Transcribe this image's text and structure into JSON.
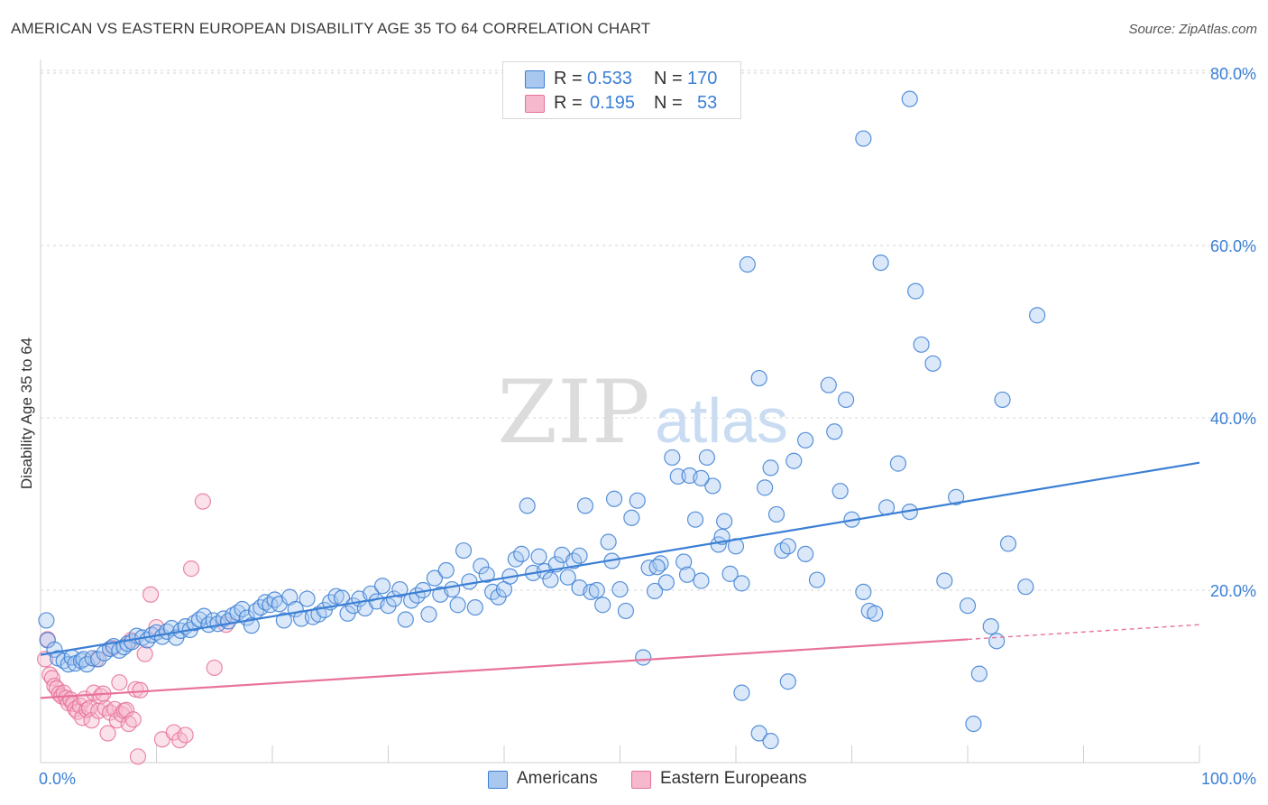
{
  "title": "AMERICAN VS EASTERN EUROPEAN DISABILITY AGE 35 TO 64 CORRELATION CHART",
  "source": "Source: ZipAtlas.com",
  "watermark": {
    "zip": "ZIP",
    "atlas": "atlas"
  },
  "colors": {
    "blue": "#3b7fd4",
    "blue_fill": "#a9c8f0",
    "pink": "#e8729a",
    "pink_fill": "#f6b8cc",
    "grid": "#d6d6d6",
    "axis_text": "#3b7fd4"
  },
  "legend": {
    "rows": [
      {
        "r_label": "R = ",
        "r_value": "0.533",
        "n_label": "N = ",
        "n_value": "170"
      },
      {
        "r_label": "R = ",
        "r_value": "0.195",
        "n_label": "N = ",
        "n_value": "53"
      }
    ]
  },
  "bottom_legend": {
    "americans": "Americans",
    "eastern_europeans": "Eastern Europeans"
  },
  "chart_data": {
    "type": "scatter",
    "title": "AMERICAN VS EASTERN EUROPEAN DISABILITY AGE 35 TO 64 CORRELATION CHART",
    "xlabel": "",
    "ylabel": "Disability Age 35 to 64",
    "xlim": [
      0,
      100
    ],
    "ylim": [
      0,
      80
    ],
    "x_tick_labels": [
      "0.0%",
      "100.0%"
    ],
    "y_ticks": [
      20,
      40,
      60,
      80
    ],
    "y_tick_labels": [
      "20.0%",
      "40.0%",
      "60.0%",
      "80.0%"
    ],
    "grid": true,
    "legend_placement": "top-center",
    "series": [
      {
        "name": "Americans",
        "color": "#3b7fd4",
        "trend": {
          "x": [
            0,
            100
          ],
          "y": [
            12.5,
            34.8
          ],
          "dashed_from": null
        },
        "points": [
          [
            0.5,
            16.5
          ],
          [
            0.6,
            14.2
          ],
          [
            1.2,
            13.1
          ],
          [
            1.5,
            12.1
          ],
          [
            2.0,
            11.8
          ],
          [
            2.4,
            11.4
          ],
          [
            2.7,
            12.2
          ],
          [
            3.0,
            11.5
          ],
          [
            3.5,
            11.8
          ],
          [
            3.7,
            12.0
          ],
          [
            4.0,
            11.4
          ],
          [
            4.5,
            12.1
          ],
          [
            5.0,
            12.0
          ],
          [
            5.5,
            12.7
          ],
          [
            6.0,
            13.2
          ],
          [
            6.3,
            13.5
          ],
          [
            6.8,
            13.0
          ],
          [
            7.2,
            13.4
          ],
          [
            7.5,
            13.8
          ],
          [
            7.9,
            14.0
          ],
          [
            8.3,
            14.7
          ],
          [
            8.8,
            14.5
          ],
          [
            9.2,
            14.2
          ],
          [
            9.6,
            14.8
          ],
          [
            10.0,
            15.1
          ],
          [
            10.5,
            14.6
          ],
          [
            10.9,
            15.2
          ],
          [
            11.3,
            15.6
          ],
          [
            11.7,
            14.5
          ],
          [
            12.1,
            15.3
          ],
          [
            12.5,
            15.8
          ],
          [
            12.9,
            15.4
          ],
          [
            13.3,
            16.2
          ],
          [
            13.7,
            16.6
          ],
          [
            14.1,
            17.0
          ],
          [
            14.5,
            16.0
          ],
          [
            14.9,
            16.5
          ],
          [
            15.3,
            16.1
          ],
          [
            15.8,
            16.7
          ],
          [
            16.2,
            16.4
          ],
          [
            16.6,
            17.1
          ],
          [
            17.0,
            17.4
          ],
          [
            17.4,
            17.8
          ],
          [
            17.8,
            16.8
          ],
          [
            18.2,
            15.9
          ],
          [
            18.6,
            17.6
          ],
          [
            19.0,
            18.0
          ],
          [
            19.4,
            18.6
          ],
          [
            19.8,
            18.3
          ],
          [
            20.2,
            18.9
          ],
          [
            20.6,
            18.4
          ],
          [
            21.0,
            16.5
          ],
          [
            21.5,
            19.2
          ],
          [
            22.0,
            17.8
          ],
          [
            22.5,
            16.7
          ],
          [
            23.0,
            19.0
          ],
          [
            23.5,
            16.9
          ],
          [
            24.0,
            17.2
          ],
          [
            24.5,
            17.7
          ],
          [
            25.0,
            18.6
          ],
          [
            25.5,
            19.3
          ],
          [
            26.0,
            19.1
          ],
          [
            26.5,
            17.3
          ],
          [
            27.0,
            18.2
          ],
          [
            27.5,
            19.0
          ],
          [
            28.0,
            17.9
          ],
          [
            28.5,
            19.6
          ],
          [
            29.0,
            18.7
          ],
          [
            29.5,
            20.5
          ],
          [
            30.0,
            18.2
          ],
          [
            30.5,
            19.0
          ],
          [
            31.0,
            20.1
          ],
          [
            31.5,
            16.6
          ],
          [
            32.0,
            18.8
          ],
          [
            32.5,
            19.4
          ],
          [
            33.0,
            20.0
          ],
          [
            33.5,
            17.2
          ],
          [
            34.0,
            21.4
          ],
          [
            34.5,
            19.5
          ],
          [
            35.0,
            22.3
          ],
          [
            35.5,
            20.1
          ],
          [
            36.0,
            18.3
          ],
          [
            36.5,
            24.6
          ],
          [
            37.0,
            21.0
          ],
          [
            37.5,
            18.0
          ],
          [
            38.0,
            22.8
          ],
          [
            38.5,
            21.8
          ],
          [
            39.0,
            19.8
          ],
          [
            39.5,
            19.2
          ],
          [
            40.0,
            20.1
          ],
          [
            40.5,
            21.6
          ],
          [
            41.0,
            23.6
          ],
          [
            41.5,
            24.2
          ],
          [
            42.0,
            29.8
          ],
          [
            42.5,
            22.0
          ],
          [
            43.0,
            23.9
          ],
          [
            43.5,
            22.2
          ],
          [
            44.0,
            21.2
          ],
          [
            44.5,
            23.0
          ],
          [
            45.0,
            24.1
          ],
          [
            45.5,
            21.5
          ],
          [
            46.0,
            23.4
          ],
          [
            46.5,
            20.3
          ],
          [
            47.0,
            29.8
          ],
          [
            47.5,
            19.8
          ],
          [
            48.0,
            20.0
          ],
          [
            48.5,
            18.3
          ],
          [
            49.0,
            25.6
          ],
          [
            49.5,
            30.6
          ],
          [
            50.0,
            20.1
          ],
          [
            50.5,
            17.6
          ],
          [
            51.0,
            28.4
          ],
          [
            51.5,
            30.4
          ],
          [
            52.0,
            12.2
          ],
          [
            52.5,
            22.6
          ],
          [
            53.0,
            19.9
          ],
          [
            53.5,
            23.1
          ],
          [
            54.0,
            20.9
          ],
          [
            54.5,
            35.4
          ],
          [
            55.0,
            33.2
          ],
          [
            55.5,
            23.3
          ],
          [
            56.0,
            33.3
          ],
          [
            56.5,
            28.2
          ],
          [
            57.0,
            21.1
          ],
          [
            57.5,
            35.4
          ],
          [
            58.0,
            32.1
          ],
          [
            58.5,
            25.3
          ],
          [
            59.0,
            28.0
          ],
          [
            59.5,
            21.9
          ],
          [
            60.0,
            25.1
          ],
          [
            60.5,
            20.8
          ],
          [
            61.0,
            57.8
          ],
          [
            62.0,
            44.6
          ],
          [
            62.5,
            31.9
          ],
          [
            63.0,
            34.2
          ],
          [
            63.5,
            28.8
          ],
          [
            64.0,
            24.6
          ],
          [
            64.5,
            25.1
          ],
          [
            65.0,
            35.0
          ],
          [
            66.0,
            37.4
          ],
          [
            67.0,
            21.2
          ],
          [
            68.0,
            43.8
          ],
          [
            68.5,
            38.4
          ],
          [
            69.0,
            31.5
          ],
          [
            69.5,
            42.1
          ],
          [
            70.0,
            28.2
          ],
          [
            71.0,
            19.8
          ],
          [
            71.5,
            17.6
          ],
          [
            72.0,
            17.3
          ],
          [
            72.5,
            58.0
          ],
          [
            73.0,
            29.6
          ],
          [
            74.0,
            34.7
          ],
          [
            75.0,
            29.1
          ],
          [
            75.5,
            54.7
          ],
          [
            76.0,
            48.5
          ],
          [
            77.0,
            46.3
          ],
          [
            78.0,
            21.1
          ],
          [
            79.0,
            30.8
          ],
          [
            80.0,
            18.2
          ],
          [
            81.0,
            10.3
          ],
          [
            82.0,
            15.8
          ],
          [
            82.5,
            14.1
          ],
          [
            83.0,
            42.1
          ],
          [
            83.5,
            25.4
          ],
          [
            85.0,
            20.4
          ],
          [
            86.0,
            51.9
          ],
          [
            71.0,
            72.4
          ],
          [
            75.0,
            77.0
          ],
          [
            66.0,
            24.2
          ],
          [
            60.5,
            8.1
          ],
          [
            62.0,
            3.4
          ],
          [
            63.0,
            2.5
          ],
          [
            64.5,
            9.4
          ],
          [
            80.5,
            4.5
          ],
          [
            57.0,
            33.0
          ],
          [
            46.5,
            24.0
          ],
          [
            49.3,
            23.4
          ],
          [
            53.2,
            22.7
          ],
          [
            55.8,
            21.8
          ],
          [
            58.8,
            26.2
          ]
        ]
      },
      {
        "name": "Eastern Europeans",
        "color": "#e8729a",
        "trend": {
          "x": [
            0,
            100
          ],
          "y": [
            7.5,
            16.0
          ],
          "dashed_from": 80
        },
        "points": [
          [
            0.4,
            12.0
          ],
          [
            0.6,
            14.3
          ],
          [
            0.8,
            10.2
          ],
          [
            1.0,
            9.8
          ],
          [
            1.2,
            8.9
          ],
          [
            1.4,
            8.6
          ],
          [
            1.6,
            8.0
          ],
          [
            1.8,
            7.7
          ],
          [
            2.0,
            8.1
          ],
          [
            2.2,
            7.5
          ],
          [
            2.4,
            6.9
          ],
          [
            2.6,
            7.3
          ],
          [
            2.8,
            6.8
          ],
          [
            3.0,
            6.2
          ],
          [
            3.2,
            5.9
          ],
          [
            3.4,
            6.6
          ],
          [
            3.6,
            5.2
          ],
          [
            3.8,
            7.4
          ],
          [
            4.0,
            6.1
          ],
          [
            4.2,
            6.3
          ],
          [
            4.4,
            4.9
          ],
          [
            4.6,
            8.1
          ],
          [
            4.8,
            12.0
          ],
          [
            5.0,
            6.0
          ],
          [
            5.2,
            7.7
          ],
          [
            5.4,
            8.0
          ],
          [
            5.6,
            6.3
          ],
          [
            5.8,
            3.4
          ],
          [
            6.0,
            5.8
          ],
          [
            6.2,
            13.3
          ],
          [
            6.4,
            6.2
          ],
          [
            6.6,
            4.9
          ],
          [
            6.8,
            9.3
          ],
          [
            7.0,
            5.6
          ],
          [
            7.2,
            6.0
          ],
          [
            7.4,
            6.1
          ],
          [
            7.6,
            4.5
          ],
          [
            7.8,
            14.2
          ],
          [
            8.0,
            5.0
          ],
          [
            8.2,
            8.5
          ],
          [
            8.4,
            0.7
          ],
          [
            8.6,
            8.4
          ],
          [
            9.0,
            12.6
          ],
          [
            9.5,
            19.5
          ],
          [
            10.0,
            15.7
          ],
          [
            10.5,
            2.7
          ],
          [
            11.5,
            3.5
          ],
          [
            12.0,
            2.6
          ],
          [
            12.5,
            3.2
          ],
          [
            13.0,
            22.5
          ],
          [
            14.0,
            30.3
          ],
          [
            15.0,
            11.0
          ],
          [
            16.0,
            16.0
          ]
        ]
      }
    ]
  }
}
